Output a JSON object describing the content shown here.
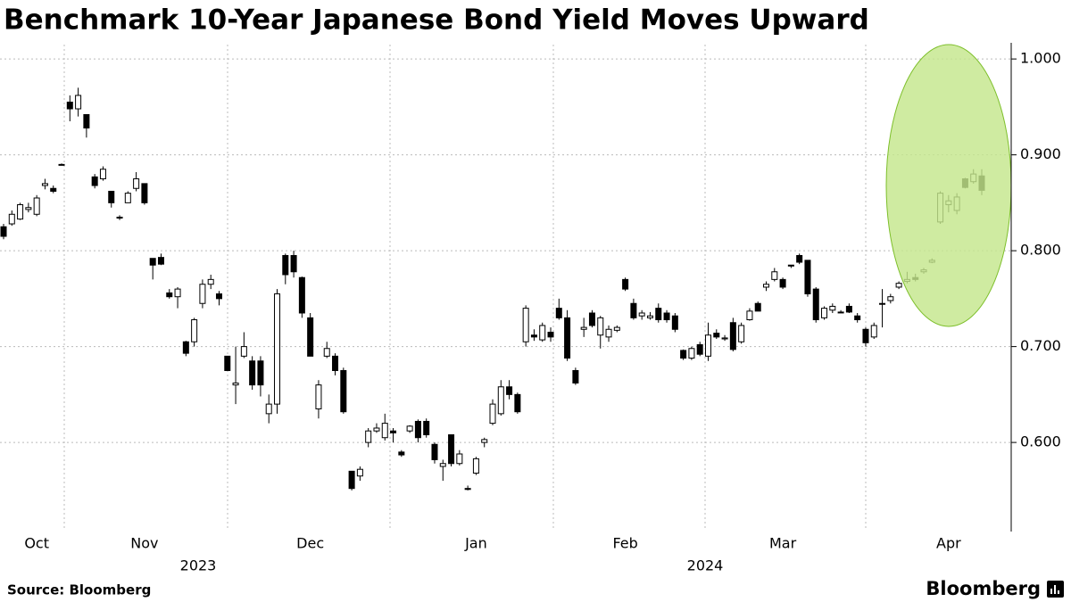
{
  "chart_data": {
    "type": "candlestick",
    "title": "Benchmark 10-Year Japanese Bond Yield Moves Upward",
    "source": "Source: Bloomberg",
    "brand": "Bloomberg",
    "categories": [
      null,
      null,
      null,
      null,
      "Oct",
      null,
      null,
      null,
      null,
      null,
      null,
      null,
      null,
      null,
      null,
      null,
      null,
      "Nov",
      null,
      null,
      null,
      null,
      null,
      null,
      null,
      null,
      null,
      null,
      null,
      null,
      null,
      null,
      null,
      null,
      null,
      null,
      null,
      "Dec",
      null,
      null,
      null,
      null,
      null,
      null,
      null,
      null,
      null,
      null,
      null,
      null,
      null,
      null,
      null,
      null,
      null,
      null,
      null,
      "Jan",
      null,
      null,
      null,
      null,
      null,
      null,
      null,
      null,
      null,
      null,
      null,
      null,
      null,
      null,
      null,
      null,
      null,
      "Feb",
      null,
      null,
      null,
      null,
      null,
      null,
      null,
      null,
      null,
      null,
      null,
      null,
      null,
      null,
      null,
      null,
      null,
      null,
      "Mar",
      null,
      null,
      null,
      null,
      null,
      null,
      null,
      null,
      null,
      null,
      null,
      null,
      null,
      null,
      null,
      null,
      null,
      null,
      null,
      "Apr",
      null,
      null,
      null,
      null
    ],
    "x_group_labels": [
      "2023",
      "2024"
    ],
    "ohlc": [
      [
        0.825,
        0.828,
        0.812,
        0.815
      ],
      [
        0.828,
        0.842,
        0.826,
        0.838
      ],
      [
        0.833,
        0.85,
        0.832,
        0.848
      ],
      [
        0.843,
        0.85,
        0.84,
        0.845
      ],
      [
        0.838,
        0.858,
        0.836,
        0.855
      ],
      [
        0.868,
        0.875,
        0.864,
        0.87
      ],
      [
        0.865,
        0.868,
        0.86,
        0.862
      ],
      [
        0.89,
        0.891,
        0.889,
        0.89
      ],
      [
        0.955,
        0.962,
        0.935,
        0.948
      ],
      [
        0.948,
        0.97,
        0.94,
        0.962
      ],
      [
        0.942,
        0.942,
        0.918,
        0.928
      ],
      [
        0.877,
        0.88,
        0.865,
        0.868
      ],
      [
        0.875,
        0.888,
        0.873,
        0.885
      ],
      [
        0.862,
        0.862,
        0.845,
        0.85
      ],
      [
        0.835,
        0.837,
        0.832,
        0.834
      ],
      [
        0.85,
        0.862,
        0.85,
        0.86
      ],
      [
        0.865,
        0.882,
        0.862,
        0.875
      ],
      [
        0.87,
        0.87,
        0.848,
        0.85
      ],
      [
        0.792,
        0.792,
        0.77,
        0.785
      ],
      [
        0.793,
        0.797,
        0.785,
        0.786
      ],
      [
        0.756,
        0.76,
        0.75,
        0.752
      ],
      [
        0.752,
        0.762,
        0.74,
        0.76
      ],
      [
        0.705,
        0.706,
        0.69,
        0.693
      ],
      [
        0.705,
        0.73,
        0.7,
        0.728
      ],
      [
        0.745,
        0.77,
        0.74,
        0.765
      ],
      [
        0.765,
        0.775,
        0.76,
        0.77
      ],
      [
        0.755,
        0.758,
        0.743,
        0.75
      ],
      [
        0.69,
        0.69,
        0.675,
        0.675
      ],
      [
        0.66,
        0.7,
        0.64,
        0.662
      ],
      [
        0.69,
        0.715,
        0.688,
        0.7
      ],
      [
        0.685,
        0.69,
        0.655,
        0.66
      ],
      [
        0.685,
        0.69,
        0.648,
        0.66
      ],
      [
        0.63,
        0.65,
        0.62,
        0.64
      ],
      [
        0.64,
        0.76,
        0.63,
        0.755
      ],
      [
        0.795,
        0.797,
        0.765,
        0.775
      ],
      [
        0.795,
        0.8,
        0.772,
        0.778
      ],
      [
        0.772,
        0.773,
        0.73,
        0.735
      ],
      [
        0.73,
        0.735,
        0.69,
        0.69
      ],
      [
        0.635,
        0.665,
        0.625,
        0.66
      ],
      [
        0.69,
        0.705,
        0.688,
        0.698
      ],
      [
        0.69,
        0.693,
        0.67,
        0.675
      ],
      [
        0.675,
        0.678,
        0.63,
        0.632
      ],
      [
        0.57,
        0.57,
        0.55,
        0.552
      ],
      [
        0.565,
        0.575,
        0.56,
        0.572
      ],
      [
        0.6,
        0.615,
        0.595,
        0.612
      ],
      [
        0.612,
        0.62,
        0.61,
        0.615
      ],
      [
        0.605,
        0.63,
        0.602,
        0.62
      ],
      [
        0.612,
        0.615,
        0.6,
        0.61
      ],
      [
        0.59,
        0.592,
        0.585,
        0.587
      ],
      [
        0.612,
        0.618,
        0.61,
        0.617
      ],
      [
        0.622,
        0.624,
        0.6,
        0.605
      ],
      [
        0.622,
        0.625,
        0.605,
        0.608
      ],
      [
        0.598,
        0.6,
        0.578,
        0.582
      ],
      [
        0.575,
        0.582,
        0.56,
        0.578
      ],
      [
        0.608,
        0.608,
        0.575,
        0.578
      ],
      [
        0.578,
        0.592,
        0.576,
        0.588
      ],
      [
        0.552,
        0.555,
        0.55,
        0.551
      ],
      [
        0.568,
        0.585,
        0.566,
        0.583
      ],
      [
        0.6,
        0.605,
        0.595,
        0.603
      ],
      [
        0.62,
        0.645,
        0.618,
        0.64
      ],
      [
        0.63,
        0.665,
        0.628,
        0.658
      ],
      [
        0.658,
        0.665,
        0.645,
        0.65
      ],
      [
        0.65,
        0.652,
        0.63,
        0.632
      ],
      [
        0.705,
        0.743,
        0.7,
        0.74
      ],
      [
        0.712,
        0.718,
        0.706,
        0.71
      ],
      [
        0.707,
        0.725,
        0.705,
        0.722
      ],
      [
        0.715,
        0.72,
        0.705,
        0.71
      ],
      [
        0.74,
        0.75,
        0.728,
        0.73
      ],
      [
        0.73,
        0.738,
        0.685,
        0.688
      ],
      [
        0.675,
        0.678,
        0.66,
        0.662
      ],
      [
        0.718,
        0.73,
        0.71,
        0.72
      ],
      [
        0.735,
        0.738,
        0.72,
        0.722
      ],
      [
        0.712,
        0.732,
        0.698,
        0.73
      ],
      [
        0.71,
        0.722,
        0.705,
        0.718
      ],
      [
        0.717,
        0.722,
        0.715,
        0.72
      ],
      [
        0.77,
        0.772,
        0.758,
        0.76
      ],
      [
        0.745,
        0.75,
        0.728,
        0.73
      ],
      [
        0.732,
        0.738,
        0.728,
        0.735
      ],
      [
        0.73,
        0.736,
        0.728,
        0.732
      ],
      [
        0.74,
        0.745,
        0.725,
        0.728
      ],
      [
        0.735,
        0.738,
        0.725,
        0.728
      ],
      [
        0.732,
        0.735,
        0.715,
        0.718
      ],
      [
        0.696,
        0.697,
        0.686,
        0.688
      ],
      [
        0.688,
        0.7,
        0.686,
        0.698
      ],
      [
        0.702,
        0.705,
        0.69,
        0.692
      ],
      [
        0.69,
        0.725,
        0.685,
        0.712
      ],
      [
        0.714,
        0.718,
        0.708,
        0.71
      ],
      [
        0.708,
        0.712,
        0.706,
        0.709
      ],
      [
        0.725,
        0.73,
        0.695,
        0.697
      ],
      [
        0.705,
        0.725,
        0.703,
        0.722
      ],
      [
        0.728,
        0.74,
        0.727,
        0.737
      ],
      [
        0.745,
        0.747,
        0.737,
        0.737
      ],
      [
        0.762,
        0.768,
        0.758,
        0.765
      ],
      [
        0.77,
        0.782,
        0.768,
        0.778
      ],
      [
        0.77,
        0.772,
        0.76,
        0.762
      ],
      [
        0.785,
        0.785,
        0.782,
        0.784
      ],
      [
        0.795,
        0.797,
        0.786,
        0.788
      ],
      [
        0.79,
        0.79,
        0.752,
        0.755
      ],
      [
        0.76,
        0.762,
        0.725,
        0.728
      ],
      [
        0.73,
        0.742,
        0.728,
        0.74
      ],
      [
        0.738,
        0.745,
        0.735,
        0.742
      ],
      [
        0.736,
        0.738,
        0.735,
        0.736
      ],
      [
        0.742,
        0.745,
        0.735,
        0.736
      ],
      [
        0.732,
        0.735,
        0.725,
        0.728
      ],
      [
        0.718,
        0.72,
        0.7,
        0.704
      ],
      [
        0.71,
        0.725,
        0.708,
        0.722
      ],
      [
        0.745,
        0.76,
        0.72,
        0.745
      ],
      [
        0.748,
        0.755,
        0.745,
        0.752
      ],
      [
        0.762,
        0.768,
        0.76,
        0.766
      ],
      [
        0.768,
        0.778,
        0.766,
        0.77
      ],
      [
        0.772,
        0.776,
        0.768,
        0.77
      ],
      [
        0.778,
        0.782,
        0.776,
        0.78
      ],
      [
        0.788,
        0.792,
        0.787,
        0.79
      ],
      [
        0.83,
        0.862,
        0.828,
        0.86
      ],
      [
        0.848,
        0.858,
        0.84,
        0.852
      ],
      [
        0.842,
        0.86,
        0.838,
        0.856
      ],
      [
        0.875,
        0.876,
        0.865,
        0.866
      ],
      [
        0.872,
        0.885,
        0.87,
        0.88
      ],
      [
        0.878,
        0.885,
        0.858,
        0.863
      ]
    ],
    "up_color": "#ffffff",
    "down_color": "#000000",
    "wick_color": "#000000",
    "ylim": [
      0.508,
      1.015
    ],
    "yticks": [
      {
        "value": 0.6,
        "label": "0.600"
      },
      {
        "value": 0.7,
        "label": "0.700"
      },
      {
        "value": 0.8,
        "label": "0.800"
      },
      {
        "value": 0.9,
        "label": "0.900"
      },
      {
        "value": 1.0,
        "label": "1.000"
      }
    ],
    "grid": true,
    "y_axis_side": "right"
  }
}
